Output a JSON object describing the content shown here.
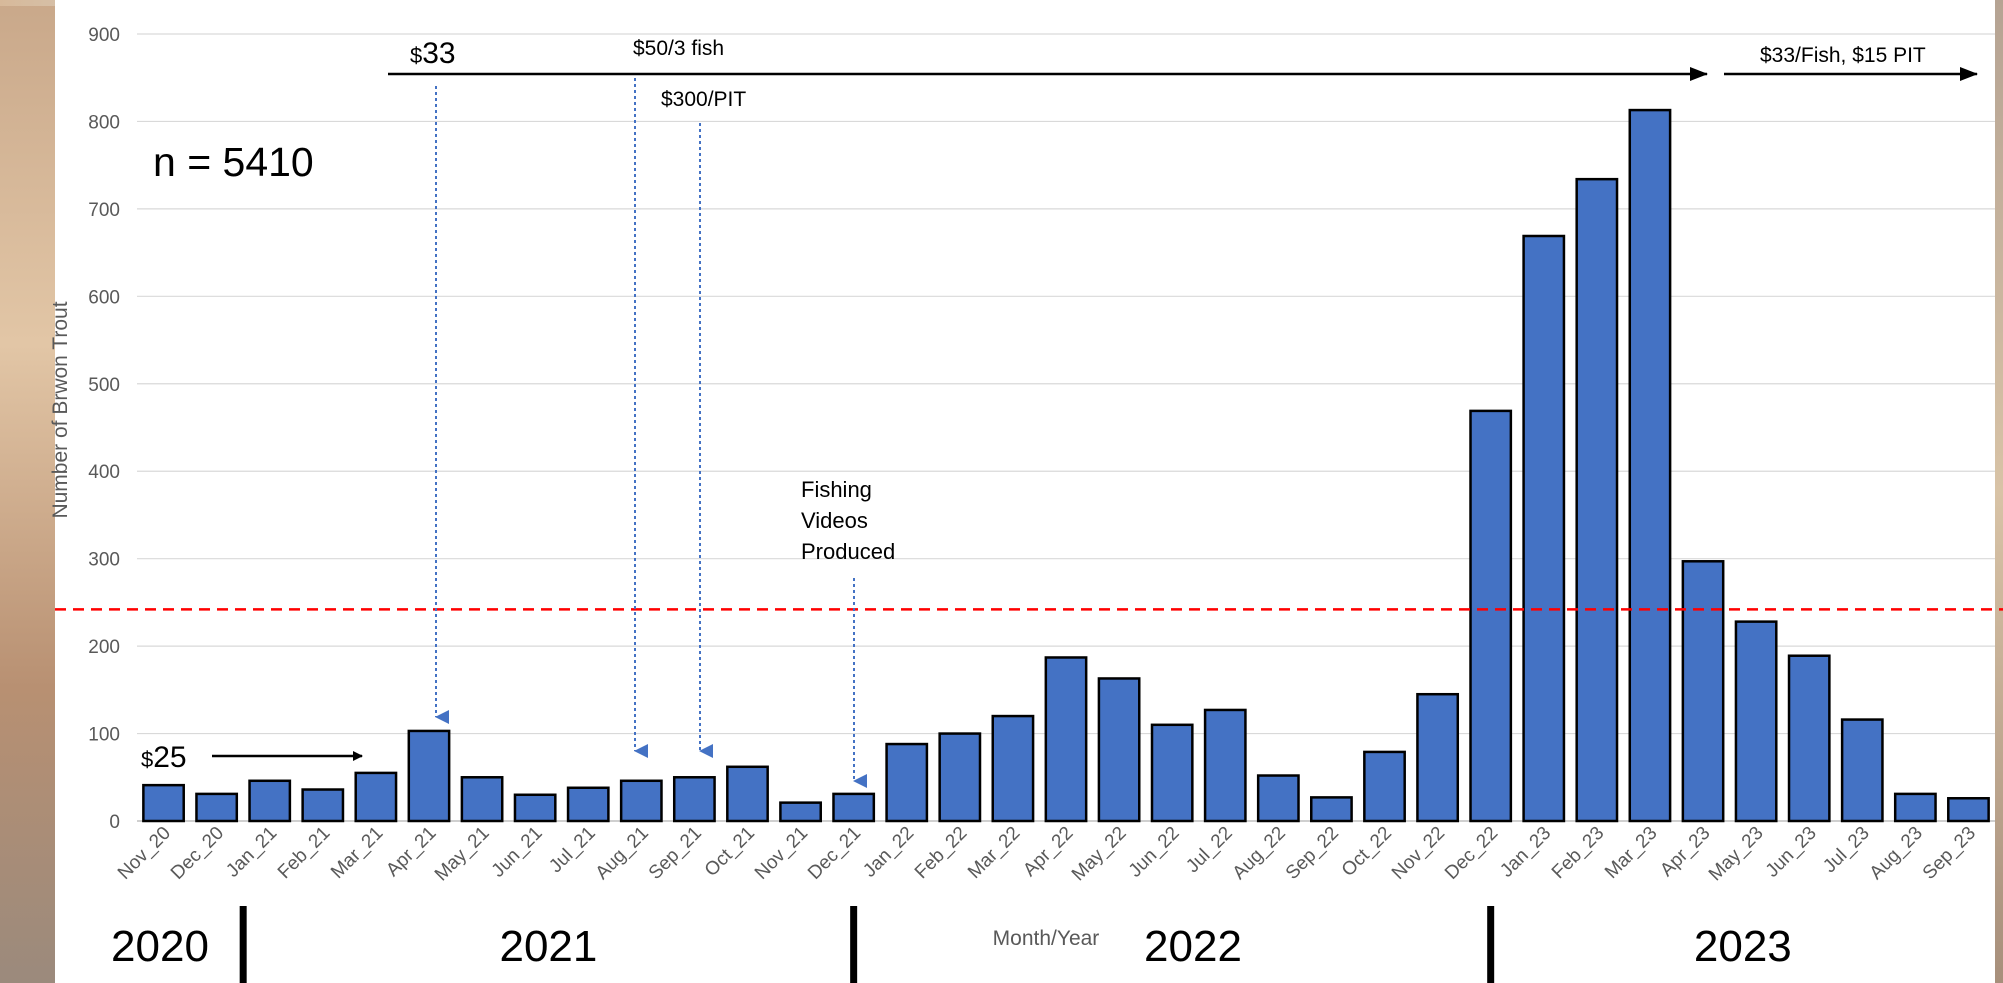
{
  "chart_data": {
    "type": "bar",
    "title": "",
    "xlabel": "Month/Year",
    "ylabel": "Number of Brwon Trout",
    "ylim": [
      0,
      900
    ],
    "yticks": [
      0,
      100,
      200,
      300,
      400,
      500,
      600,
      700,
      800,
      900
    ],
    "grid": true,
    "categories": [
      "Nov_20",
      "Dec_20",
      "Jan_21",
      "Feb_21",
      "Mar_21",
      "Apr_21",
      "May_21",
      "Jun_21",
      "Jul_21",
      "Aug_21",
      "Sep_21",
      "Oct_21",
      "Nov_21",
      "Dec_21",
      "Jan_22",
      "Feb_22",
      "Mar_22",
      "Apr_22",
      "May_22",
      "Jun_22",
      "Jul_22",
      "Aug_22",
      "Sep_22",
      "Oct_22",
      "Nov_22",
      "Dec_22",
      "Jan_23",
      "Feb_23",
      "Mar_23",
      "Apr_23",
      "May_23",
      "Jun_23",
      "Jul_23",
      "Aug_23",
      "Sep_23"
    ],
    "values": [
      41,
      31,
      46,
      36,
      55,
      103,
      50,
      30,
      38,
      46,
      50,
      62,
      21,
      31,
      88,
      100,
      120,
      187,
      163,
      110,
      127,
      52,
      27,
      79,
      145,
      469,
      669,
      734,
      813,
      297,
      228,
      189,
      116,
      31,
      26
    ],
    "bar_color": "#4472C4",
    "bar_edge_color": "#000000",
    "reference_line": {
      "value": 242,
      "color": "#FF0000",
      "style": "dashed"
    },
    "sample_size_label": "n = 5410",
    "years": [
      {
        "label": "2020",
        "start": 0,
        "end": 2
      },
      {
        "label": "2021",
        "start": 2,
        "end": 13.5
      },
      {
        "label": "2022",
        "start": 13.5,
        "end": 25.5
      },
      {
        "label": "2023",
        "start": 25.5,
        "end": 35
      }
    ],
    "annotations": {
      "reward_25": {
        "currency": "$",
        "amount": "25",
        "target_index": 4
      },
      "reward_33": {
        "currency": "$",
        "amount": "33",
        "target_index": 5
      },
      "fish_50": {
        "text": "$50/3 fish",
        "target_index": 9
      },
      "pit_300": {
        "text": "$300/PIT",
        "target_index": 10
      },
      "fishing_videos": {
        "lines": [
          "Fishing",
          "Videos",
          "Produced"
        ],
        "target_index": 13
      },
      "fish_33_pit_15": {
        "text": "$33/Fish, $15 PIT"
      }
    }
  }
}
